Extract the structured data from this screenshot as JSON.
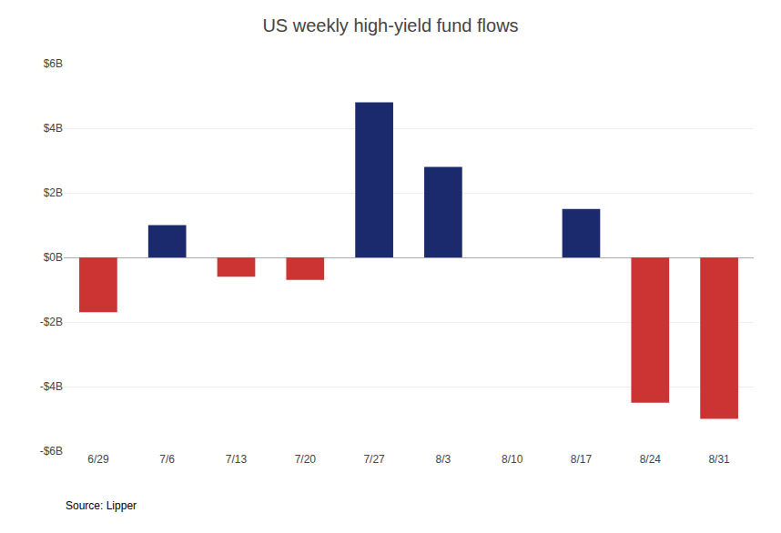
{
  "chart_data": {
    "type": "bar",
    "title": "US weekly high-yield fund flows",
    "categories": [
      "6/29",
      "7/6",
      "7/13",
      "7/20",
      "7/27",
      "8/3",
      "8/10",
      "8/17",
      "8/24",
      "8/31"
    ],
    "values": [
      -1.7,
      1.0,
      -0.6,
      -0.7,
      4.8,
      2.8,
      0.0,
      1.5,
      -4.5,
      -5.0
    ],
    "colors": [
      "#cc3333",
      "#1a2a6c",
      "#cc3333",
      "#cc3333",
      "#1a2a6c",
      "#1a2a6c",
      "#1a2a6c",
      "#1a2a6c",
      "#cc3333",
      "#cc3333"
    ],
    "ylim": [
      -6,
      6
    ],
    "yticks": [
      {
        "value": -6,
        "label": "-$6B"
      },
      {
        "value": -4,
        "label": "-$4B"
      },
      {
        "value": -2,
        "label": "-$2B"
      },
      {
        "value": 0,
        "label": "$0B"
      },
      {
        "value": 2,
        "label": "$2B"
      },
      {
        "value": 4,
        "label": "$4B"
      },
      {
        "value": 6,
        "label": "$6B"
      }
    ],
    "grid": true,
    "annotations": [
      "Source: Lipper"
    ]
  }
}
